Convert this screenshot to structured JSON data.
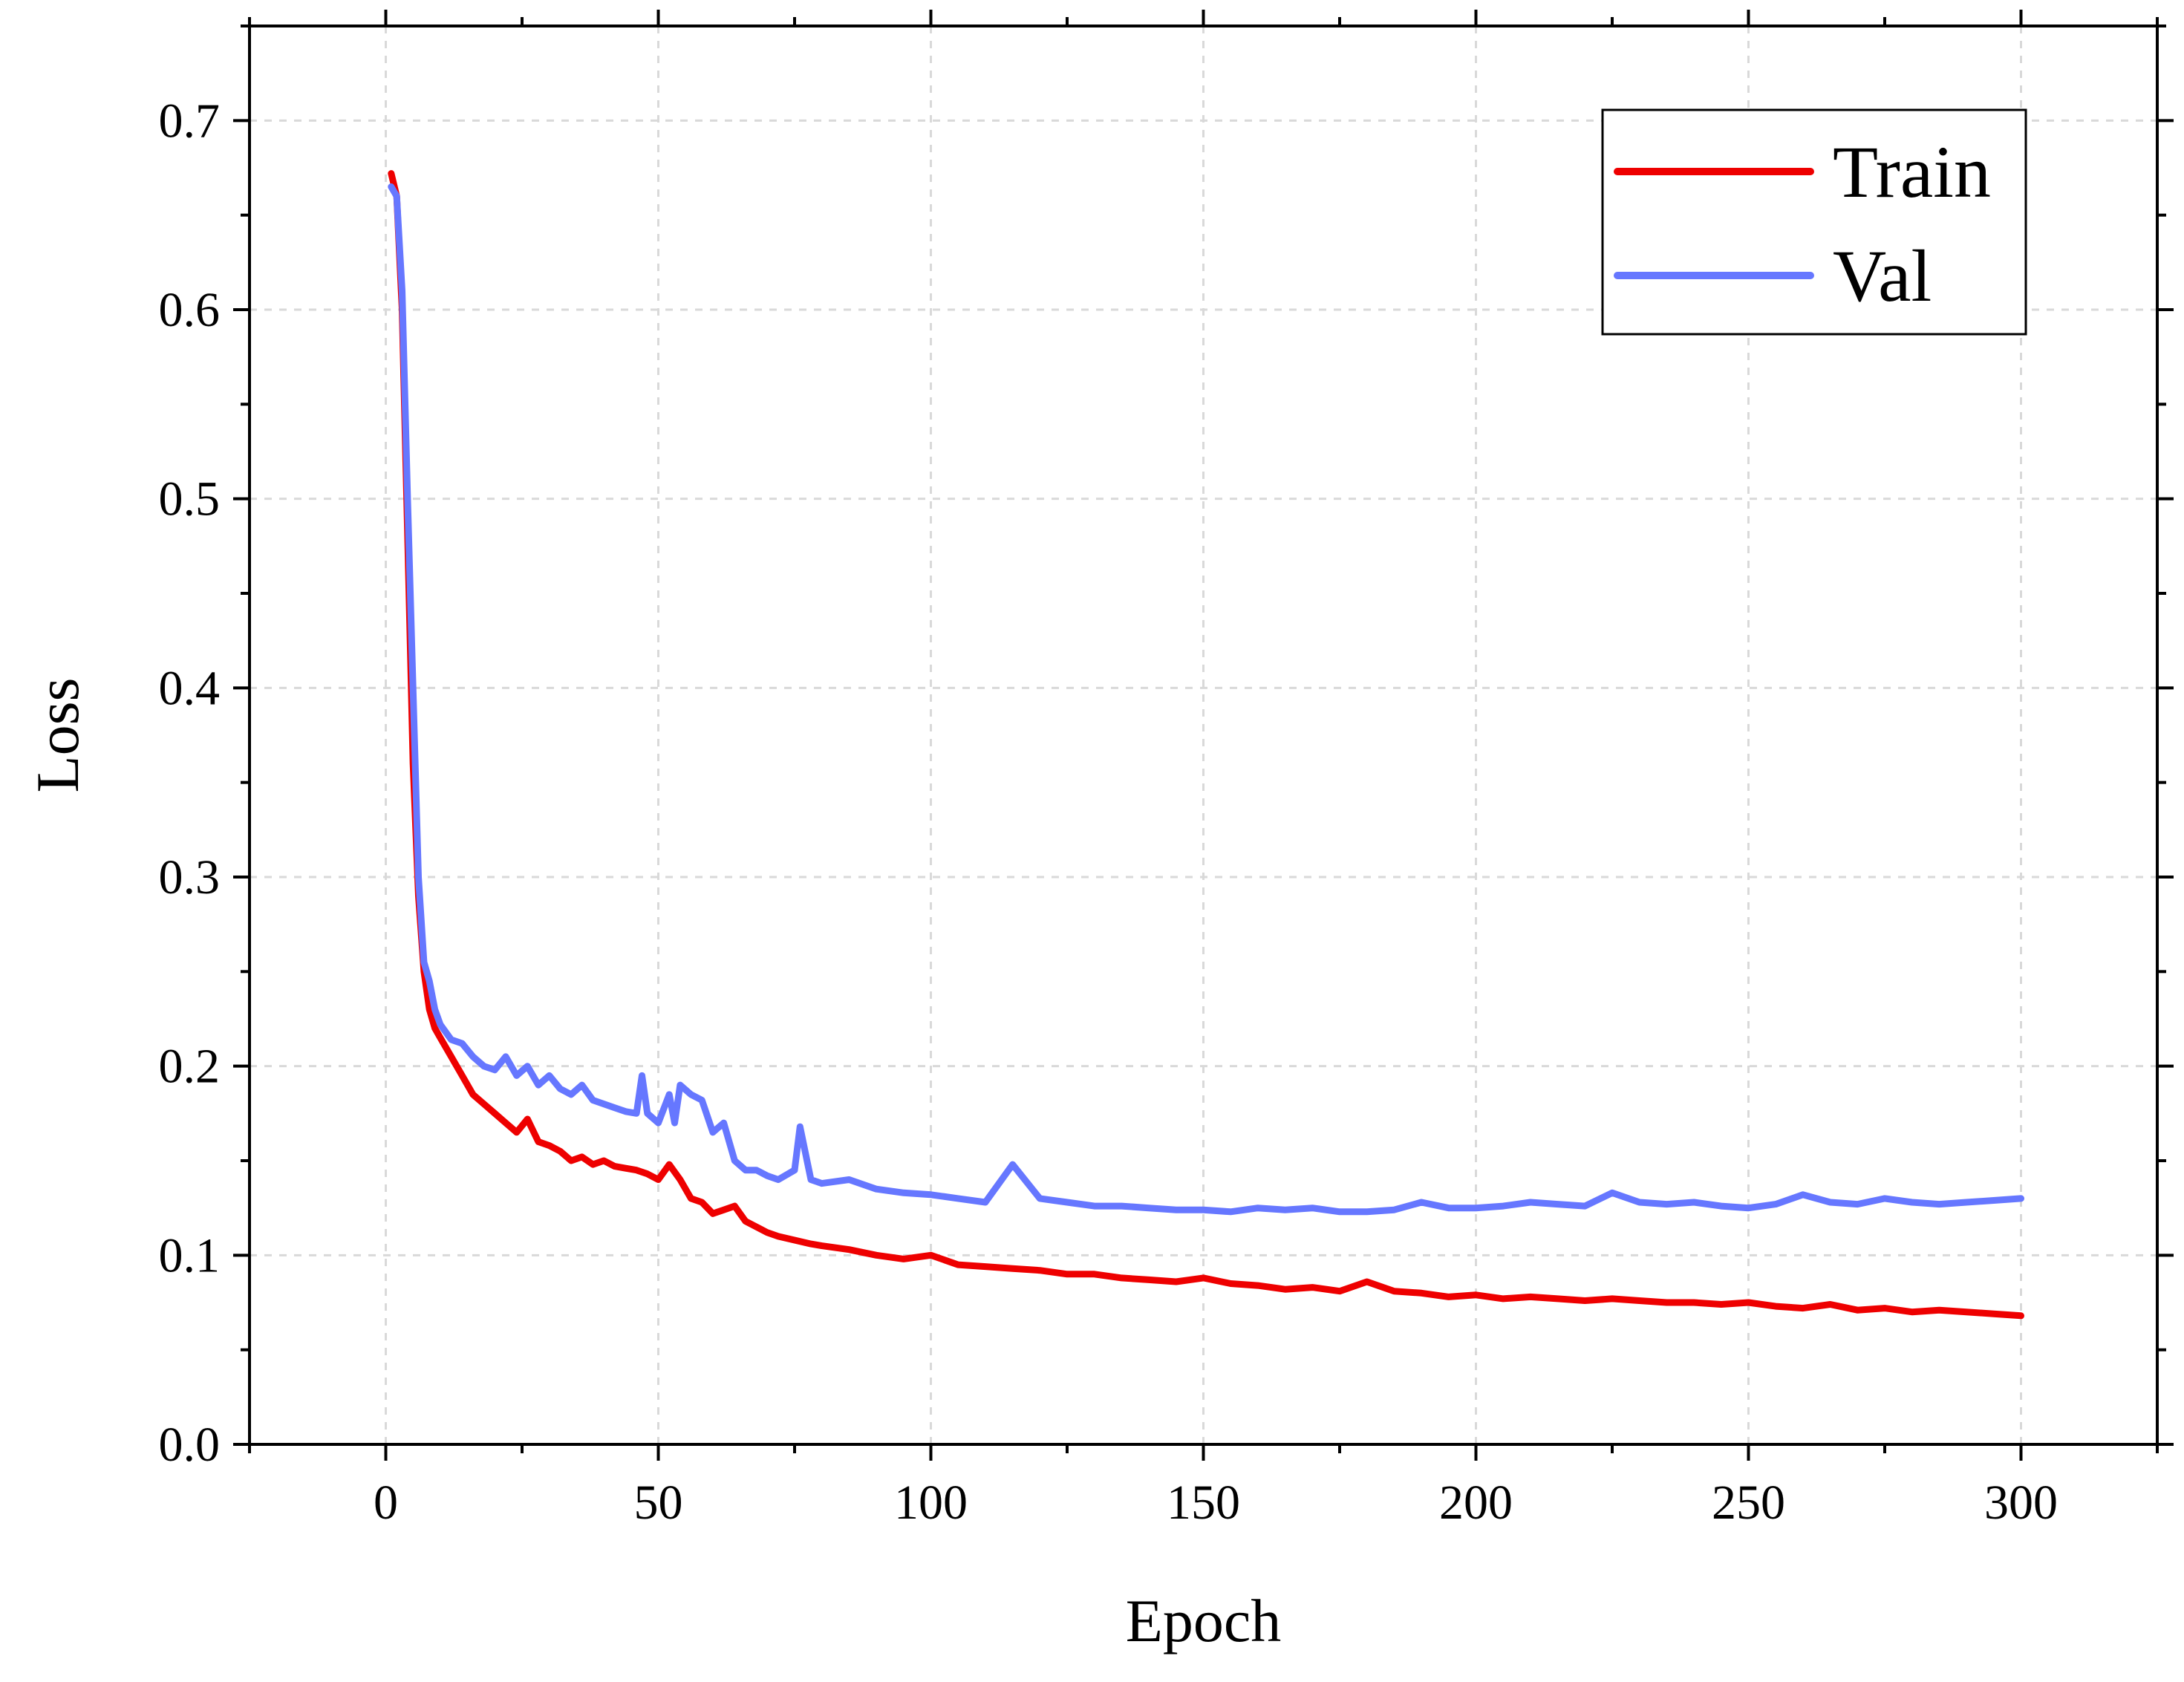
{
  "chart_data": {
    "type": "line",
    "title": "",
    "xlabel": "Epoch",
    "ylabel": "Loss",
    "xlim": [
      -25,
      325
    ],
    "ylim": [
      0.0,
      0.75
    ],
    "x_ticks": [
      0,
      50,
      100,
      150,
      200,
      250,
      300
    ],
    "x_tick_labels": [
      "0",
      "50",
      "100",
      "150",
      "200",
      "250",
      "300"
    ],
    "y_ticks": [
      0.0,
      0.1,
      0.2,
      0.3,
      0.4,
      0.5,
      0.6,
      0.7
    ],
    "y_tick_labels": [
      "0.0",
      "0.1",
      "0.2",
      "0.3",
      "0.4",
      "0.5",
      "0.6",
      "0.7"
    ],
    "grid": true,
    "legend_position": "top-right",
    "series": [
      {
        "name": "Train",
        "color": "#ee0000",
        "x": [
          1,
          2,
          3,
          4,
          5,
          6,
          7,
          8,
          9,
          10,
          12,
          14,
          16,
          18,
          20,
          22,
          24,
          26,
          28,
          30,
          32,
          34,
          36,
          38,
          40,
          42,
          44,
          46,
          48,
          50,
          52,
          54,
          56,
          58,
          60,
          62,
          64,
          66,
          68,
          70,
          72,
          75,
          78,
          80,
          85,
          90,
          95,
          100,
          105,
          110,
          115,
          120,
          125,
          130,
          135,
          140,
          145,
          150,
          155,
          160,
          165,
          170,
          175,
          180,
          185,
          190,
          195,
          200,
          205,
          210,
          215,
          220,
          225,
          230,
          235,
          240,
          245,
          250,
          255,
          260,
          265,
          270,
          275,
          280,
          285,
          290,
          295,
          300
        ],
        "values": [
          0.672,
          0.66,
          0.6,
          0.48,
          0.36,
          0.29,
          0.25,
          0.23,
          0.22,
          0.215,
          0.205,
          0.195,
          0.185,
          0.18,
          0.175,
          0.17,
          0.165,
          0.172,
          0.16,
          0.158,
          0.155,
          0.15,
          0.152,
          0.148,
          0.15,
          0.147,
          0.146,
          0.145,
          0.143,
          0.14,
          0.148,
          0.14,
          0.13,
          0.128,
          0.122,
          0.124,
          0.126,
          0.118,
          0.115,
          0.112,
          0.11,
          0.108,
          0.106,
          0.105,
          0.103,
          0.1,
          0.098,
          0.1,
          0.095,
          0.094,
          0.093,
          0.092,
          0.09,
          0.09,
          0.088,
          0.087,
          0.086,
          0.088,
          0.085,
          0.084,
          0.082,
          0.083,
          0.081,
          0.086,
          0.081,
          0.08,
          0.078,
          0.079,
          0.077,
          0.078,
          0.077,
          0.076,
          0.077,
          0.076,
          0.075,
          0.075,
          0.074,
          0.075,
          0.073,
          0.072,
          0.074,
          0.071,
          0.072,
          0.07,
          0.071,
          0.07,
          0.069,
          0.068
        ]
      },
      {
        "name": "Val",
        "color": "#6677ff",
        "x": [
          1,
          2,
          3,
          4,
          5,
          6,
          7,
          8,
          9,
          10,
          12,
          14,
          16,
          18,
          20,
          22,
          24,
          26,
          28,
          30,
          32,
          34,
          36,
          38,
          40,
          42,
          44,
          46,
          47,
          48,
          50,
          52,
          53,
          54,
          56,
          58,
          60,
          62,
          64,
          66,
          68,
          70,
          72,
          75,
          76,
          78,
          80,
          85,
          90,
          95,
          100,
          105,
          110,
          115,
          120,
          125,
          130,
          135,
          140,
          145,
          150,
          155,
          160,
          165,
          170,
          175,
          180,
          185,
          190,
          195,
          200,
          205,
          210,
          215,
          220,
          225,
          230,
          235,
          240,
          245,
          250,
          255,
          260,
          265,
          270,
          275,
          280,
          285,
          290,
          295,
          300
        ],
        "values": [
          0.665,
          0.66,
          0.61,
          0.5,
          0.4,
          0.3,
          0.255,
          0.245,
          0.23,
          0.222,
          0.214,
          0.212,
          0.205,
          0.2,
          0.198,
          0.205,
          0.195,
          0.2,
          0.19,
          0.195,
          0.188,
          0.185,
          0.19,
          0.182,
          0.18,
          0.178,
          0.176,
          0.175,
          0.195,
          0.175,
          0.17,
          0.185,
          0.17,
          0.19,
          0.185,
          0.182,
          0.165,
          0.17,
          0.15,
          0.145,
          0.145,
          0.142,
          0.14,
          0.145,
          0.168,
          0.14,
          0.138,
          0.14,
          0.135,
          0.133,
          0.132,
          0.13,
          0.128,
          0.148,
          0.13,
          0.128,
          0.126,
          0.126,
          0.125,
          0.124,
          0.124,
          0.123,
          0.125,
          0.124,
          0.125,
          0.123,
          0.123,
          0.124,
          0.128,
          0.125,
          0.125,
          0.126,
          0.128,
          0.127,
          0.126,
          0.133,
          0.128,
          0.127,
          0.128,
          0.126,
          0.125,
          0.127,
          0.132,
          0.128,
          0.127,
          0.13,
          0.128,
          0.127,
          0.128,
          0.129,
          0.13
        ]
      }
    ]
  }
}
